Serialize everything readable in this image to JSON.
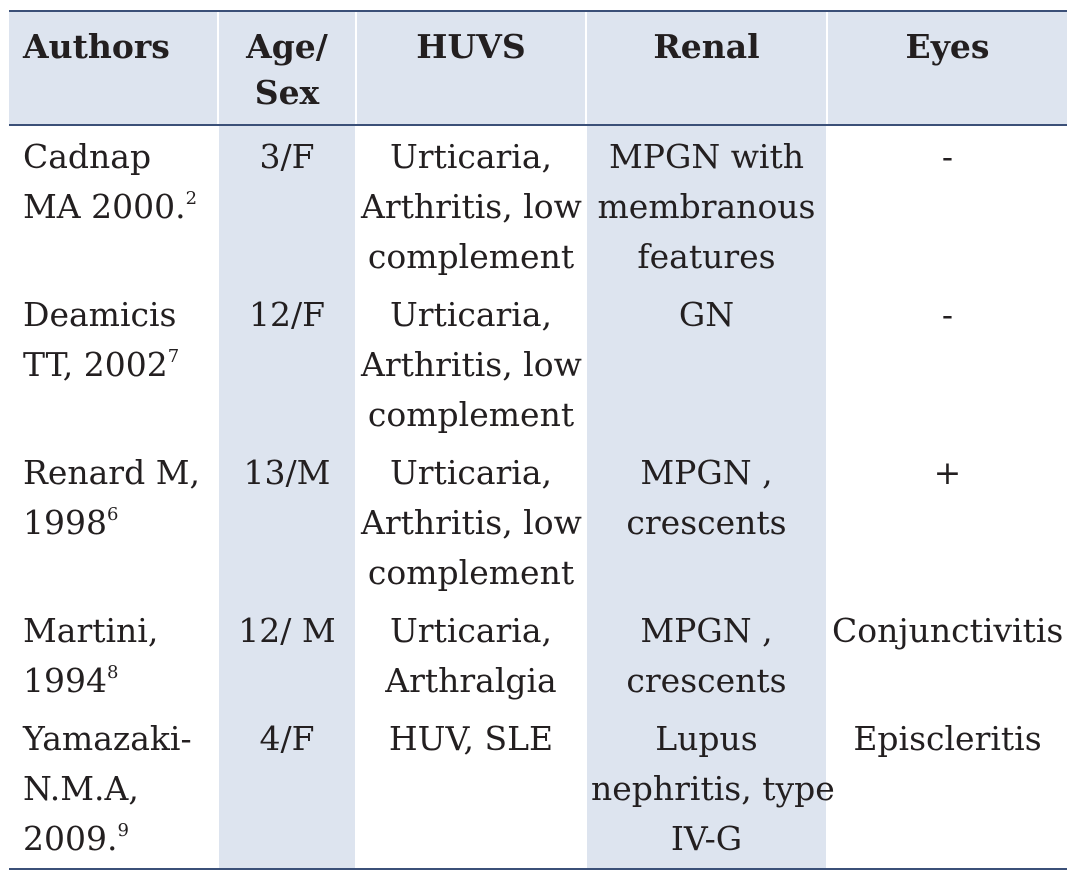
{
  "table": {
    "headers": {
      "authors": "Authors",
      "age_line1": "Age/",
      "age_line2": "Sex",
      "huvs": "HUVS",
      "renal": "Renal",
      "eyes": "Eyes"
    },
    "rows": [
      {
        "author_lines": [
          "Cadnap",
          "MA 2000."
        ],
        "ref": "2",
        "age_sex": "3/F",
        "huvs_lines": [
          "Urticaria,",
          "Arthritis, low",
          "complement"
        ],
        "renal_lines": [
          "MPGN with",
          "membranous",
          "features"
        ],
        "eyes": "-"
      },
      {
        "author_lines": [
          "Deamicis",
          "TT, 2002"
        ],
        "ref": "7",
        "age_sex": "12/F",
        "huvs_lines": [
          "Urticaria,",
          "Arthritis, low",
          "complement"
        ],
        "renal_lines": [
          "GN"
        ],
        "eyes": "-"
      },
      {
        "author_lines": [
          "Renard M,",
          "1998"
        ],
        "ref": "6",
        "age_sex": "13/M",
        "huvs_lines": [
          "Urticaria,",
          "Arthritis, low",
          "complement"
        ],
        "renal_lines": [
          "MPGN ,",
          "crescents"
        ],
        "eyes": "+"
      },
      {
        "author_lines": [
          "Martini,",
          "1994"
        ],
        "ref": "8",
        "age_sex": "12/ M",
        "huvs_lines": [
          "Urticaria,",
          "Arthralgia"
        ],
        "renal_lines": [
          "MPGN ,",
          "crescents"
        ],
        "eyes": "Conjunctivitis"
      },
      {
        "author_lines": [
          "Yamazaki-",
          "N.M.A,",
          "2009."
        ],
        "ref": "9",
        "age_sex": "4/F",
        "huvs_lines": [
          "HUV, SLE"
        ],
        "renal_lines": [
          "Lupus",
          "nephritis, type",
          "IV-G"
        ],
        "eyes": "Episcleritis"
      }
    ]
  }
}
